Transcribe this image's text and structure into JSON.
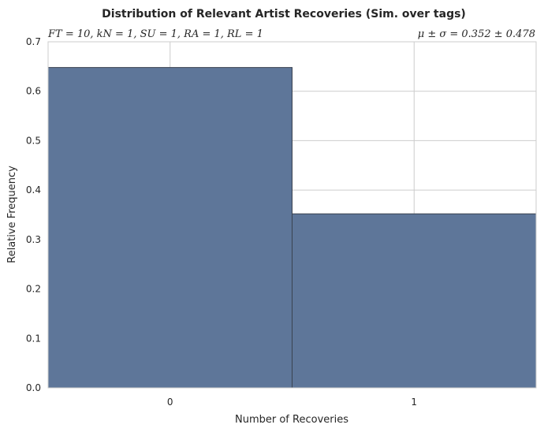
{
  "chart_data": {
    "type": "bar",
    "title": "Distribution of Relevant Artist Recoveries (Sim. over tags)",
    "annotation_left": "FT = 10, kN = 1, SU = 1, RA = 1, RL = 1",
    "annotation_right": "μ ± σ = 0.352 ± 0.478",
    "xlabel": "Number of Recoveries",
    "ylabel": "Relative Frequency",
    "categories": [
      "0",
      "1"
    ],
    "values": [
      0.648,
      0.352
    ],
    "ylim": [
      0,
      0.7
    ],
    "yticks": [
      "0.0",
      "0.1",
      "0.2",
      "0.3",
      "0.4",
      "0.5",
      "0.6",
      "0.7"
    ],
    "grid": true,
    "bar_color": "#5e7699",
    "edge_color": "#3a4250"
  }
}
